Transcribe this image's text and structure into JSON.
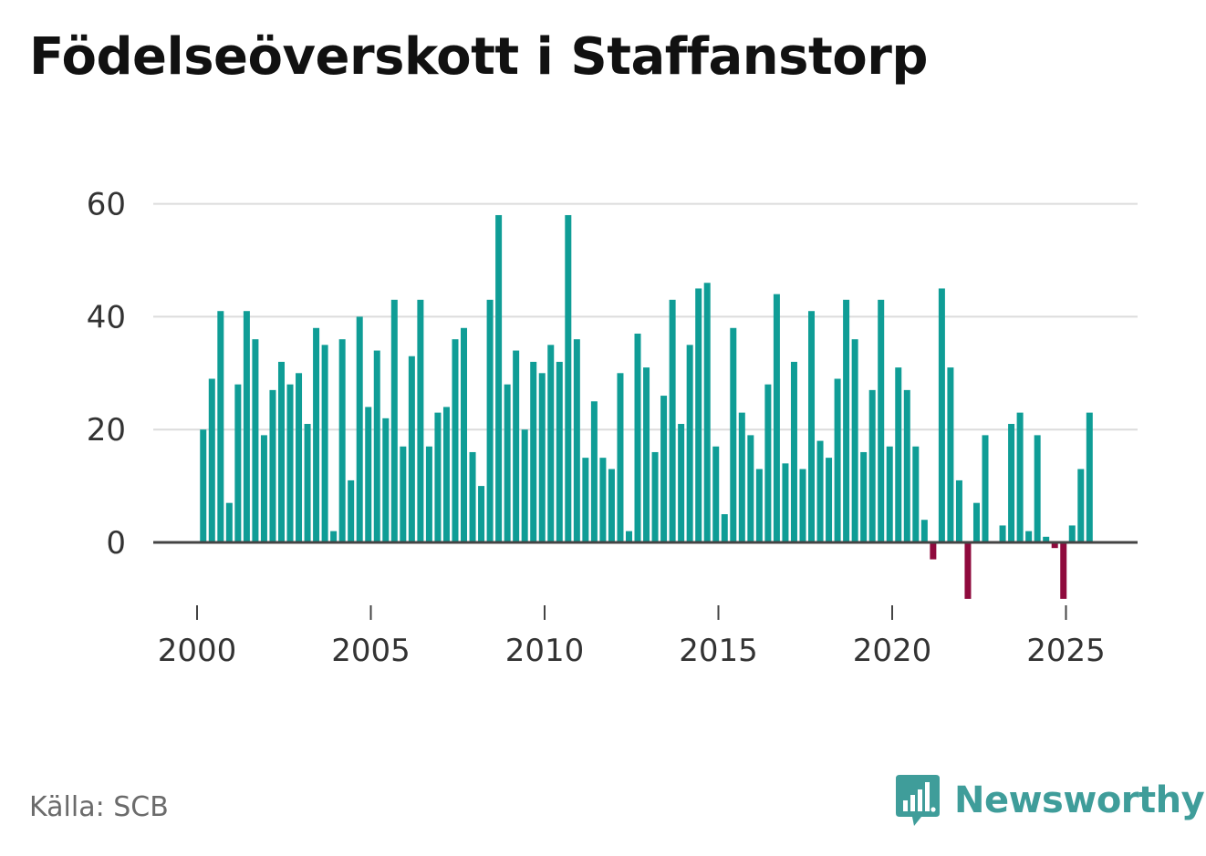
{
  "title": "Födelseöverskott i Staffanstorp",
  "source": "Källa: SCB",
  "brand": "Newsworthy",
  "colors": {
    "positive": "#0f9d96",
    "negative": "#8f0a3d",
    "grid": "#dcdcdc",
    "zero_line": "#444444",
    "brand": "#3f9d9a"
  },
  "chart_data": {
    "type": "bar",
    "title": "",
    "xlabel": "",
    "ylabel": "",
    "frequency": "quarterly",
    "start": "2000 Q1",
    "end": "2025 Q3",
    "ylim": [
      -10,
      60
    ],
    "yticks": [
      0,
      20,
      40,
      60
    ],
    "ytick_labels": [
      "0",
      "20",
      "40",
      "60"
    ],
    "xticks": [
      "2000",
      "2005",
      "2010",
      "2015",
      "2020",
      "2025"
    ],
    "grid": true,
    "values": [
      20,
      29,
      41,
      7,
      28,
      41,
      36,
      19,
      27,
      32,
      28,
      30,
      21,
      38,
      35,
      2,
      36,
      11,
      40,
      24,
      34,
      22,
      43,
      17,
      33,
      43,
      17,
      23,
      24,
      36,
      38,
      16,
      10,
      43,
      58,
      28,
      34,
      20,
      32,
      30,
      35,
      32,
      58,
      36,
      15,
      25,
      15,
      13,
      30,
      2,
      37,
      31,
      16,
      26,
      43,
      21,
      35,
      45,
      46,
      17,
      5,
      38,
      23,
      19,
      13,
      28,
      44,
      14,
      32,
      13,
      41,
      18,
      15,
      29,
      43,
      36,
      16,
      27,
      43,
      17,
      31,
      27,
      17,
      4,
      -3,
      45,
      31,
      11,
      -10,
      7,
      19,
      0,
      3,
      21,
      23,
      2,
      19,
      1,
      -1,
      -10,
      3,
      13,
      23
    ]
  }
}
